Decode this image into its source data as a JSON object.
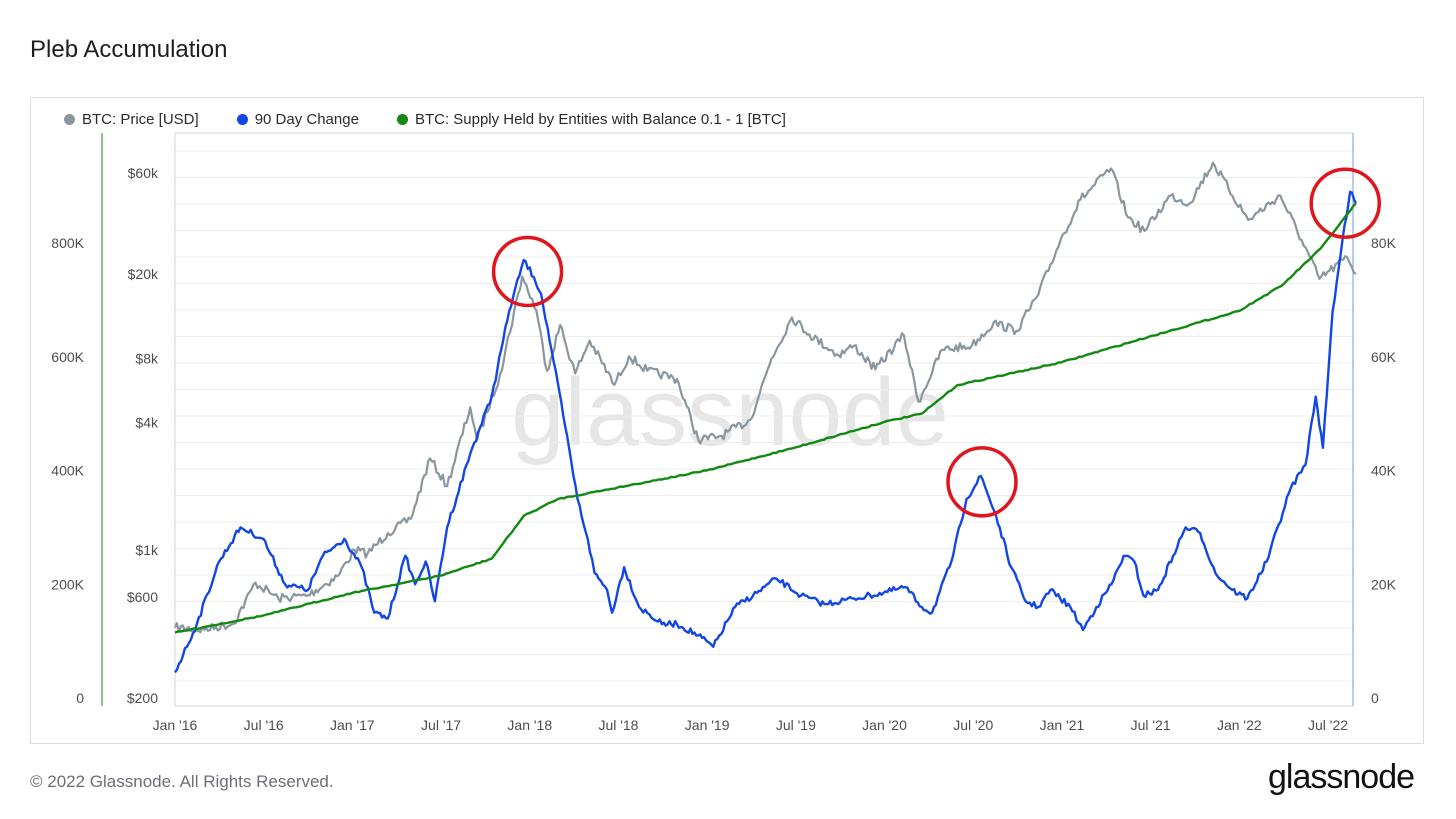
{
  "page": {
    "title": "Pleb Accumulation",
    "footer": "© 2022 Glassnode. All Rights Reserved.",
    "logo": "glassnode",
    "watermark": "glassnode"
  },
  "colors": {
    "price": "#8a969e",
    "change": "#1346e6",
    "supply": "#128a12",
    "highlight_circle": "#e0161d",
    "grid": "#ececec"
  },
  "chart_data": {
    "type": "line",
    "title": "Pleb Accumulation",
    "x_ticks": [
      "Jan '16",
      "Jul '16",
      "Jan '17",
      "Jul '17",
      "Jan '18",
      "Jul '18",
      "Jan '19",
      "Jul '19",
      "Jan '20",
      "Jul '20",
      "Jan '21",
      "Jul '21",
      "Jan '22",
      "Jul '22"
    ],
    "x_range": [
      "2016-01-01",
      "2022-09-01"
    ],
    "axes": {
      "price": {
        "ticks": [
          "$200",
          "$600",
          "$1k",
          "$4k",
          "$8k",
          "$20k",
          "$60k"
        ],
        "tick_values": [
          200,
          600,
          1000,
          4000,
          8000,
          20000,
          60000
        ],
        "scale": "log"
      },
      "change": {
        "ticks": [
          "0",
          "200K",
          "400K",
          "600K",
          "800K"
        ],
        "tick_values": [
          0,
          200000,
          400000,
          600000,
          800000
        ],
        "ylim": [
          0,
          800000
        ]
      },
      "supply": {
        "ticks": [
          "0",
          "20K",
          "40K",
          "60K",
          "80K"
        ],
        "tick_values": [
          0,
          20000,
          40000,
          60000,
          80000
        ],
        "ylim": [
          0,
          80000
        ]
      }
    },
    "legend": {
      "placement": "top-left"
    },
    "grid": true,
    "series": [
      {
        "name": "BTC: Price [USD]",
        "axis": "price",
        "points": [
          [
            "2016-01-01",
            430
          ],
          [
            "2016-03-01",
            420
          ],
          [
            "2016-05-01",
            450
          ],
          [
            "2016-06-15",
            700
          ],
          [
            "2016-08-01",
            590
          ],
          [
            "2016-10-01",
            610
          ],
          [
            "2016-12-01",
            750
          ],
          [
            "2017-01-05",
            1000
          ],
          [
            "2017-02-01",
            960
          ],
          [
            "2017-03-15",
            1200
          ],
          [
            "2017-05-01",
            1400
          ],
          [
            "2017-06-10",
            2700
          ],
          [
            "2017-07-15",
            2000
          ],
          [
            "2017-09-01",
            4700
          ],
          [
            "2017-09-15",
            3300
          ],
          [
            "2017-11-01",
            6700
          ],
          [
            "2017-12-17",
            19500
          ],
          [
            "2018-01-15",
            13500
          ],
          [
            "2018-02-06",
            7000
          ],
          [
            "2018-03-05",
            11500
          ],
          [
            "2018-04-05",
            6800
          ],
          [
            "2018-05-05",
            9700
          ],
          [
            "2018-06-25",
            6000
          ],
          [
            "2018-07-25",
            8200
          ],
          [
            "2018-09-01",
            7000
          ],
          [
            "2018-11-01",
            6400
          ],
          [
            "2018-12-15",
            3300
          ],
          [
            "2019-02-01",
            3450
          ],
          [
            "2019-04-01",
            4100
          ],
          [
            "2019-05-15",
            8000
          ],
          [
            "2019-06-26",
            12500
          ],
          [
            "2019-08-01",
            10400
          ],
          [
            "2019-09-30",
            8300
          ],
          [
            "2019-11-01",
            9200
          ],
          [
            "2019-12-15",
            7100
          ],
          [
            "2020-02-12",
            10300
          ],
          [
            "2020-03-13",
            5000
          ],
          [
            "2020-05-01",
            8800
          ],
          [
            "2020-07-01",
            9200
          ],
          [
            "2020-08-15",
            11800
          ],
          [
            "2020-10-01",
            10800
          ],
          [
            "2020-11-15",
            16000
          ],
          [
            "2020-12-31",
            29000
          ],
          [
            "2021-02-10",
            45000
          ],
          [
            "2021-04-14",
            63000
          ],
          [
            "2021-05-19",
            37000
          ],
          [
            "2021-06-22",
            32000
          ],
          [
            "2021-08-15",
            47000
          ],
          [
            "2021-09-22",
            43000
          ],
          [
            "2021-11-10",
            67000
          ],
          [
            "2022-01-22",
            36000
          ],
          [
            "2022-03-29",
            47000
          ],
          [
            "2022-05-12",
            29000
          ],
          [
            "2022-06-18",
            19000
          ],
          [
            "2022-08-14",
            24000
          ],
          [
            "2022-09-01",
            20000
          ]
        ]
      },
      {
        "name": "90 Day Change",
        "axis": "change",
        "points": [
          [
            "2016-01-01",
            45000
          ],
          [
            "2016-02-15",
            130000
          ],
          [
            "2016-04-01",
            240000
          ],
          [
            "2016-05-15",
            300000
          ],
          [
            "2016-07-01",
            280000
          ],
          [
            "2016-08-15",
            200000
          ],
          [
            "2016-10-01",
            190000
          ],
          [
            "2016-11-01",
            250000
          ],
          [
            "2016-12-15",
            280000
          ],
          [
            "2017-01-20",
            230000
          ],
          [
            "2017-02-15",
            150000
          ],
          [
            "2017-03-15",
            140000
          ],
          [
            "2017-04-20",
            250000
          ],
          [
            "2017-05-10",
            200000
          ],
          [
            "2017-06-01",
            240000
          ],
          [
            "2017-06-20",
            170000
          ],
          [
            "2017-07-15",
            300000
          ],
          [
            "2017-09-01",
            430000
          ],
          [
            "2017-10-15",
            530000
          ],
          [
            "2017-11-20",
            680000
          ],
          [
            "2017-12-20",
            770000
          ],
          [
            "2018-01-10",
            740000
          ],
          [
            "2018-01-25",
            710000
          ],
          [
            "2018-02-20",
            590000
          ],
          [
            "2018-03-15",
            480000
          ],
          [
            "2018-04-10",
            350000
          ],
          [
            "2018-05-01",
            280000
          ],
          [
            "2018-05-15",
            220000
          ],
          [
            "2018-06-10",
            190000
          ],
          [
            "2018-06-20",
            150000
          ],
          [
            "2018-07-15",
            230000
          ],
          [
            "2018-08-15",
            160000
          ],
          [
            "2018-10-01",
            130000
          ],
          [
            "2018-11-01",
            130000
          ],
          [
            "2018-12-15",
            110000
          ],
          [
            "2019-01-15",
            90000
          ],
          [
            "2019-03-01",
            160000
          ],
          [
            "2019-04-15",
            185000
          ],
          [
            "2019-05-25",
            210000
          ],
          [
            "2019-07-15",
            180000
          ],
          [
            "2019-09-01",
            165000
          ],
          [
            "2019-11-01",
            175000
          ],
          [
            "2020-01-01",
            185000
          ],
          [
            "2020-02-15",
            195000
          ],
          [
            "2020-03-20",
            160000
          ],
          [
            "2020-04-10",
            150000
          ],
          [
            "2020-05-20",
            240000
          ],
          [
            "2020-06-20",
            350000
          ],
          [
            "2020-07-20",
            390000
          ],
          [
            "2020-08-20",
            320000
          ],
          [
            "2020-09-20",
            230000
          ],
          [
            "2020-10-20",
            170000
          ],
          [
            "2020-11-15",
            160000
          ],
          [
            "2020-12-10",
            190000
          ],
          [
            "2021-01-20",
            160000
          ],
          [
            "2021-02-15",
            120000
          ],
          [
            "2021-03-15",
            160000
          ],
          [
            "2021-04-15",
            200000
          ],
          [
            "2021-05-10",
            250000
          ],
          [
            "2021-06-01",
            240000
          ],
          [
            "2021-06-20",
            180000
          ],
          [
            "2021-07-20",
            190000
          ],
          [
            "2021-08-20",
            250000
          ],
          [
            "2021-09-15",
            300000
          ],
          [
            "2021-10-15",
            290000
          ],
          [
            "2021-11-15",
            220000
          ],
          [
            "2021-12-20",
            190000
          ],
          [
            "2022-01-20",
            175000
          ],
          [
            "2022-03-01",
            240000
          ],
          [
            "2022-04-20",
            370000
          ],
          [
            "2022-05-20",
            410000
          ],
          [
            "2022-06-10",
            530000
          ],
          [
            "2022-06-25",
            440000
          ],
          [
            "2022-07-15",
            680000
          ],
          [
            "2022-08-05",
            810000
          ],
          [
            "2022-08-20",
            890000
          ],
          [
            "2022-09-01",
            870000
          ]
        ]
      },
      {
        "name": "BTC: Supply Held by Entities with Balance 0.1 - 1 [BTC]",
        "axis": "supply",
        "points": [
          [
            "2016-01-01",
            11500
          ],
          [
            "2016-07-01",
            14500
          ],
          [
            "2017-01-01",
            18500
          ],
          [
            "2017-07-01",
            21500
          ],
          [
            "2017-10-15",
            24500
          ],
          [
            "2017-12-20",
            32000
          ],
          [
            "2018-03-01",
            35000
          ],
          [
            "2018-07-01",
            37000
          ],
          [
            "2019-01-01",
            40000
          ],
          [
            "2019-07-01",
            44000
          ],
          [
            "2020-01-01",
            48500
          ],
          [
            "2020-03-20",
            50000
          ],
          [
            "2020-06-01",
            55000
          ],
          [
            "2021-01-01",
            59000
          ],
          [
            "2021-07-01",
            63500
          ],
          [
            "2022-01-01",
            68000
          ],
          [
            "2022-04-01",
            72500
          ],
          [
            "2022-06-20",
            79000
          ],
          [
            "2022-09-01",
            87000
          ]
        ]
      }
    ],
    "annotations": [
      {
        "type": "circle",
        "x": "2017-12-28",
        "axis": "change",
        "y": 750000
      },
      {
        "type": "circle",
        "x": "2020-07-22",
        "axis": "change",
        "y": 380000
      },
      {
        "type": "circle",
        "x": "2022-08-10",
        "axis": "change",
        "y": 870000
      }
    ]
  }
}
